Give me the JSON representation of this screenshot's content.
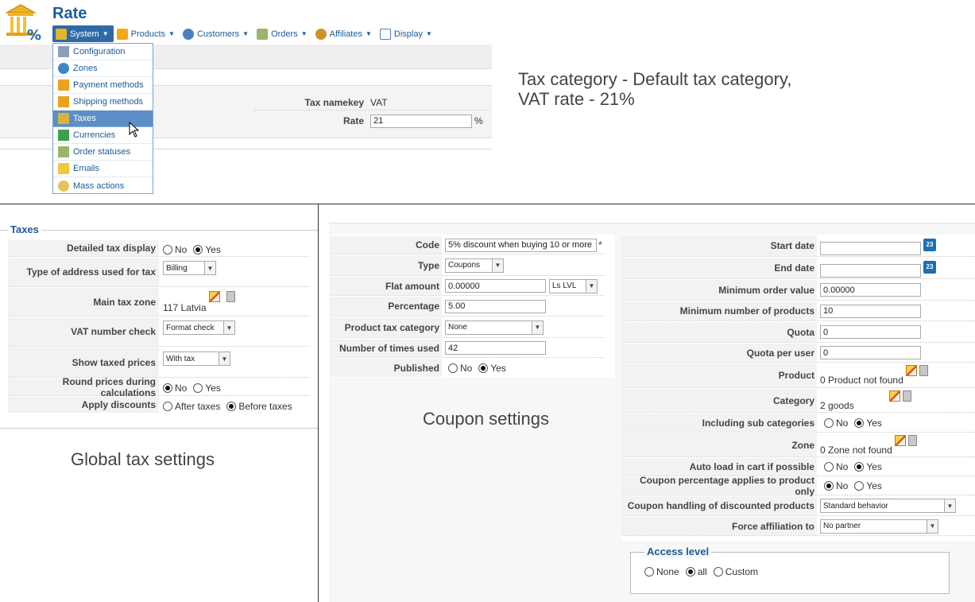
{
  "header": {
    "title": "Rate"
  },
  "menu": {
    "items": [
      {
        "label": "System",
        "icon": "wrench-icon",
        "active": true
      },
      {
        "label": "Products",
        "icon": "box-icon"
      },
      {
        "label": "Customers",
        "icon": "users-icon"
      },
      {
        "label": "Orders",
        "icon": "orders-icon"
      },
      {
        "label": "Affiliates",
        "icon": "affiliates-icon"
      },
      {
        "label": "Display",
        "icon": "display-icon"
      }
    ],
    "dropdown": [
      {
        "label": "Configuration",
        "icon": "wrench-icon"
      },
      {
        "label": "Zones",
        "icon": "globe-icon"
      },
      {
        "label": "Payment methods",
        "icon": "payment-icon"
      },
      {
        "label": "Shipping methods",
        "icon": "shipping-icon"
      },
      {
        "label": "Taxes",
        "icon": "taxes-icon",
        "selected": true
      },
      {
        "label": "Currencies",
        "icon": "currency-icon"
      },
      {
        "label": "Order statuses",
        "icon": "order-status-icon"
      },
      {
        "label": "Emails",
        "icon": "email-icon"
      },
      {
        "label": "Mass actions",
        "icon": "mass-actions-icon"
      }
    ]
  },
  "rate_form": {
    "namekey_label": "Tax namekey",
    "namekey_value": "VAT",
    "rate_label": "Rate",
    "rate_value": "21",
    "rate_unit": "%"
  },
  "captions": {
    "top_line1": "Tax category - Default tax category,",
    "top_line2": "VAT rate - 21%",
    "global": "Global tax settings",
    "coupon": "Coupon settings"
  },
  "taxes": {
    "legend": "Taxes",
    "detailed_label": "Detailed tax display",
    "no": "No",
    "yes": "Yes",
    "address_label": "Type of address used for tax",
    "address_value": "Billing",
    "zone_label": "Main tax zone",
    "zone_value": "117 Latvia",
    "vat_label": "VAT number check",
    "vat_value": "Format check",
    "taxed_label": "Show taxed prices",
    "taxed_value": "With tax",
    "round_label": "Round prices during calculations",
    "discount_label": "Apply discounts",
    "after": "After taxes",
    "before": "Before taxes"
  },
  "coupon": {
    "code_label": "Code",
    "code_value": "5% discount when buying 10 or more",
    "required": "*",
    "type_label": "Type",
    "type_value": "Coupons",
    "flat_label": "Flat amount",
    "flat_value": "0.00000",
    "currency": "Ls LVL",
    "percent_label": "Percentage",
    "percent_value": "5.00",
    "ptax_label": "Product tax category",
    "ptax_value": "None",
    "times_label": "Number of times used",
    "times_value": "42",
    "pub_label": "Published",
    "no": "No",
    "yes": "Yes",
    "start_label": "Start date",
    "end_label": "End date",
    "cal": "23",
    "minval_label": "Minimum order value",
    "minval_value": "0.00000",
    "minprod_label": "Minimum number of products",
    "minprod_value": "10",
    "quota_label": "Quota",
    "quota_value": "0",
    "quotauser_label": "Quota per user",
    "quotauser_value": "0",
    "product_label": "Product",
    "product_value": "0 Product not found",
    "category_label": "Category",
    "category_value": "2 goods",
    "subcat_label": "Including sub categories",
    "zone_label": "Zone",
    "zone_value": "0 Zone not found",
    "autoload_label": "Auto load in cart if possible",
    "pctonly_label": "Coupon percentage applies to product only",
    "handling_label": "Coupon handling of discounted products",
    "handling_value": "Standard behavior",
    "affil_label": "Force affiliation to",
    "affil_value": "No partner",
    "access_legend": "Access level",
    "none": "None",
    "all": "all",
    "custom": "Custom"
  }
}
